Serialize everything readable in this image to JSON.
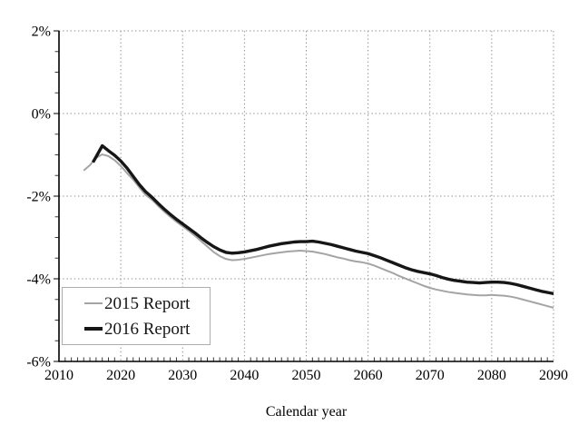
{
  "chart_data": {
    "type": "line",
    "title": "",
    "xlabel": "Calendar year",
    "ylabel": "",
    "xlim": [
      2010,
      2090
    ],
    "ylim": [
      -6,
      2
    ],
    "grid": "dotted major gridlines, both directions",
    "legend_position": "lower-left",
    "axis_color": "#000000",
    "grid_color": "#8f8f8f",
    "background_color": "#ffffff",
    "xticks": {
      "values": [
        2010,
        2020,
        2030,
        2040,
        2050,
        2060,
        2070,
        2080,
        2090
      ],
      "labels": [
        "2010",
        "2020",
        "2030",
        "2040",
        "2050",
        "2060",
        "2070",
        "2080",
        "2090"
      ]
    },
    "yticks": {
      "values": [
        2,
        0,
        -2,
        -4,
        -6
      ],
      "labels": [
        "2%",
        "0%",
        "-2%",
        "-4%",
        "-6%"
      ]
    },
    "x_minor_tick_step": 1,
    "y_minor_tick_step": 0.5,
    "series": [
      {
        "name": "2015 Report",
        "color": "#a4a4a4",
        "line_width": 2,
        "x": [
          2014,
          2015,
          2016,
          2017,
          2018,
          2019,
          2020,
          2021,
          2022,
          2023,
          2024,
          2025,
          2026,
          2027,
          2028,
          2029,
          2030,
          2031,
          2032,
          2033,
          2034,
          2035,
          2036,
          2037,
          2038,
          2039,
          2040,
          2041,
          2042,
          2043,
          2044,
          2045,
          2046,
          2047,
          2048,
          2049,
          2050,
          2051,
          2052,
          2053,
          2054,
          2055,
          2056,
          2057,
          2058,
          2059,
          2060,
          2061,
          2062,
          2063,
          2064,
          2065,
          2066,
          2067,
          2068,
          2069,
          2070,
          2071,
          2072,
          2073,
          2074,
          2075,
          2076,
          2077,
          2078,
          2079,
          2080,
          2081,
          2082,
          2083,
          2084,
          2085,
          2086,
          2087,
          2088,
          2089,
          2090
        ],
        "y": [
          -1.38,
          -1.25,
          -1.07,
          -0.99,
          -1.03,
          -1.13,
          -1.27,
          -1.44,
          -1.6,
          -1.79,
          -1.97,
          -2.08,
          -2.23,
          -2.37,
          -2.5,
          -2.62,
          -2.73,
          -2.84,
          -2.96,
          -3.09,
          -3.22,
          -3.35,
          -3.45,
          -3.52,
          -3.55,
          -3.54,
          -3.52,
          -3.49,
          -3.46,
          -3.43,
          -3.4,
          -3.38,
          -3.36,
          -3.34,
          -3.33,
          -3.32,
          -3.33,
          -3.34,
          -3.37,
          -3.4,
          -3.44,
          -3.48,
          -3.51,
          -3.55,
          -3.58,
          -3.6,
          -3.63,
          -3.68,
          -3.74,
          -3.8,
          -3.86,
          -3.93,
          -3.99,
          -4.05,
          -4.11,
          -4.17,
          -4.22,
          -4.26,
          -4.29,
          -4.32,
          -4.34,
          -4.36,
          -4.38,
          -4.39,
          -4.4,
          -4.4,
          -4.39,
          -4.4,
          -4.41,
          -4.43,
          -4.46,
          -4.5,
          -4.54,
          -4.58,
          -4.62,
          -4.66,
          -4.7
        ]
      },
      {
        "name": "2016 Report",
        "color": "#161616",
        "line_width": 3.4,
        "x": [
          2015.5,
          2016,
          2017,
          2018,
          2019,
          2020,
          2021,
          2022,
          2023,
          2024,
          2025,
          2026,
          2027,
          2028,
          2029,
          2030,
          2031,
          2032,
          2033,
          2034,
          2035,
          2036,
          2037,
          2038,
          2039,
          2040,
          2041,
          2042,
          2043,
          2044,
          2045,
          2046,
          2047,
          2048,
          2049,
          2050,
          2051,
          2052,
          2053,
          2054,
          2055,
          2056,
          2057,
          2058,
          2059,
          2060,
          2061,
          2062,
          2063,
          2064,
          2065,
          2066,
          2067,
          2068,
          2069,
          2070,
          2071,
          2072,
          2073,
          2074,
          2075,
          2076,
          2077,
          2078,
          2079,
          2080,
          2081,
          2082,
          2083,
          2084,
          2085,
          2086,
          2087,
          2088,
          2089,
          2090
        ],
        "y": [
          -1.18,
          -1.05,
          -0.78,
          -0.9,
          -1.01,
          -1.15,
          -1.32,
          -1.52,
          -1.72,
          -1.89,
          -2.02,
          -2.17,
          -2.31,
          -2.44,
          -2.56,
          -2.67,
          -2.78,
          -2.89,
          -3.01,
          -3.12,
          -3.22,
          -3.3,
          -3.36,
          -3.38,
          -3.37,
          -3.35,
          -3.32,
          -3.29,
          -3.25,
          -3.21,
          -3.18,
          -3.15,
          -3.13,
          -3.11,
          -3.1,
          -3.1,
          -3.09,
          -3.11,
          -3.14,
          -3.17,
          -3.21,
          -3.25,
          -3.29,
          -3.33,
          -3.36,
          -3.39,
          -3.44,
          -3.49,
          -3.55,
          -3.61,
          -3.67,
          -3.73,
          -3.78,
          -3.82,
          -3.85,
          -3.88,
          -3.92,
          -3.97,
          -4.01,
          -4.04,
          -4.06,
          -4.08,
          -4.09,
          -4.1,
          -4.09,
          -4.08,
          -4.08,
          -4.09,
          -4.11,
          -4.14,
          -4.18,
          -4.22,
          -4.26,
          -4.3,
          -4.33,
          -4.36
        ]
      }
    ]
  }
}
